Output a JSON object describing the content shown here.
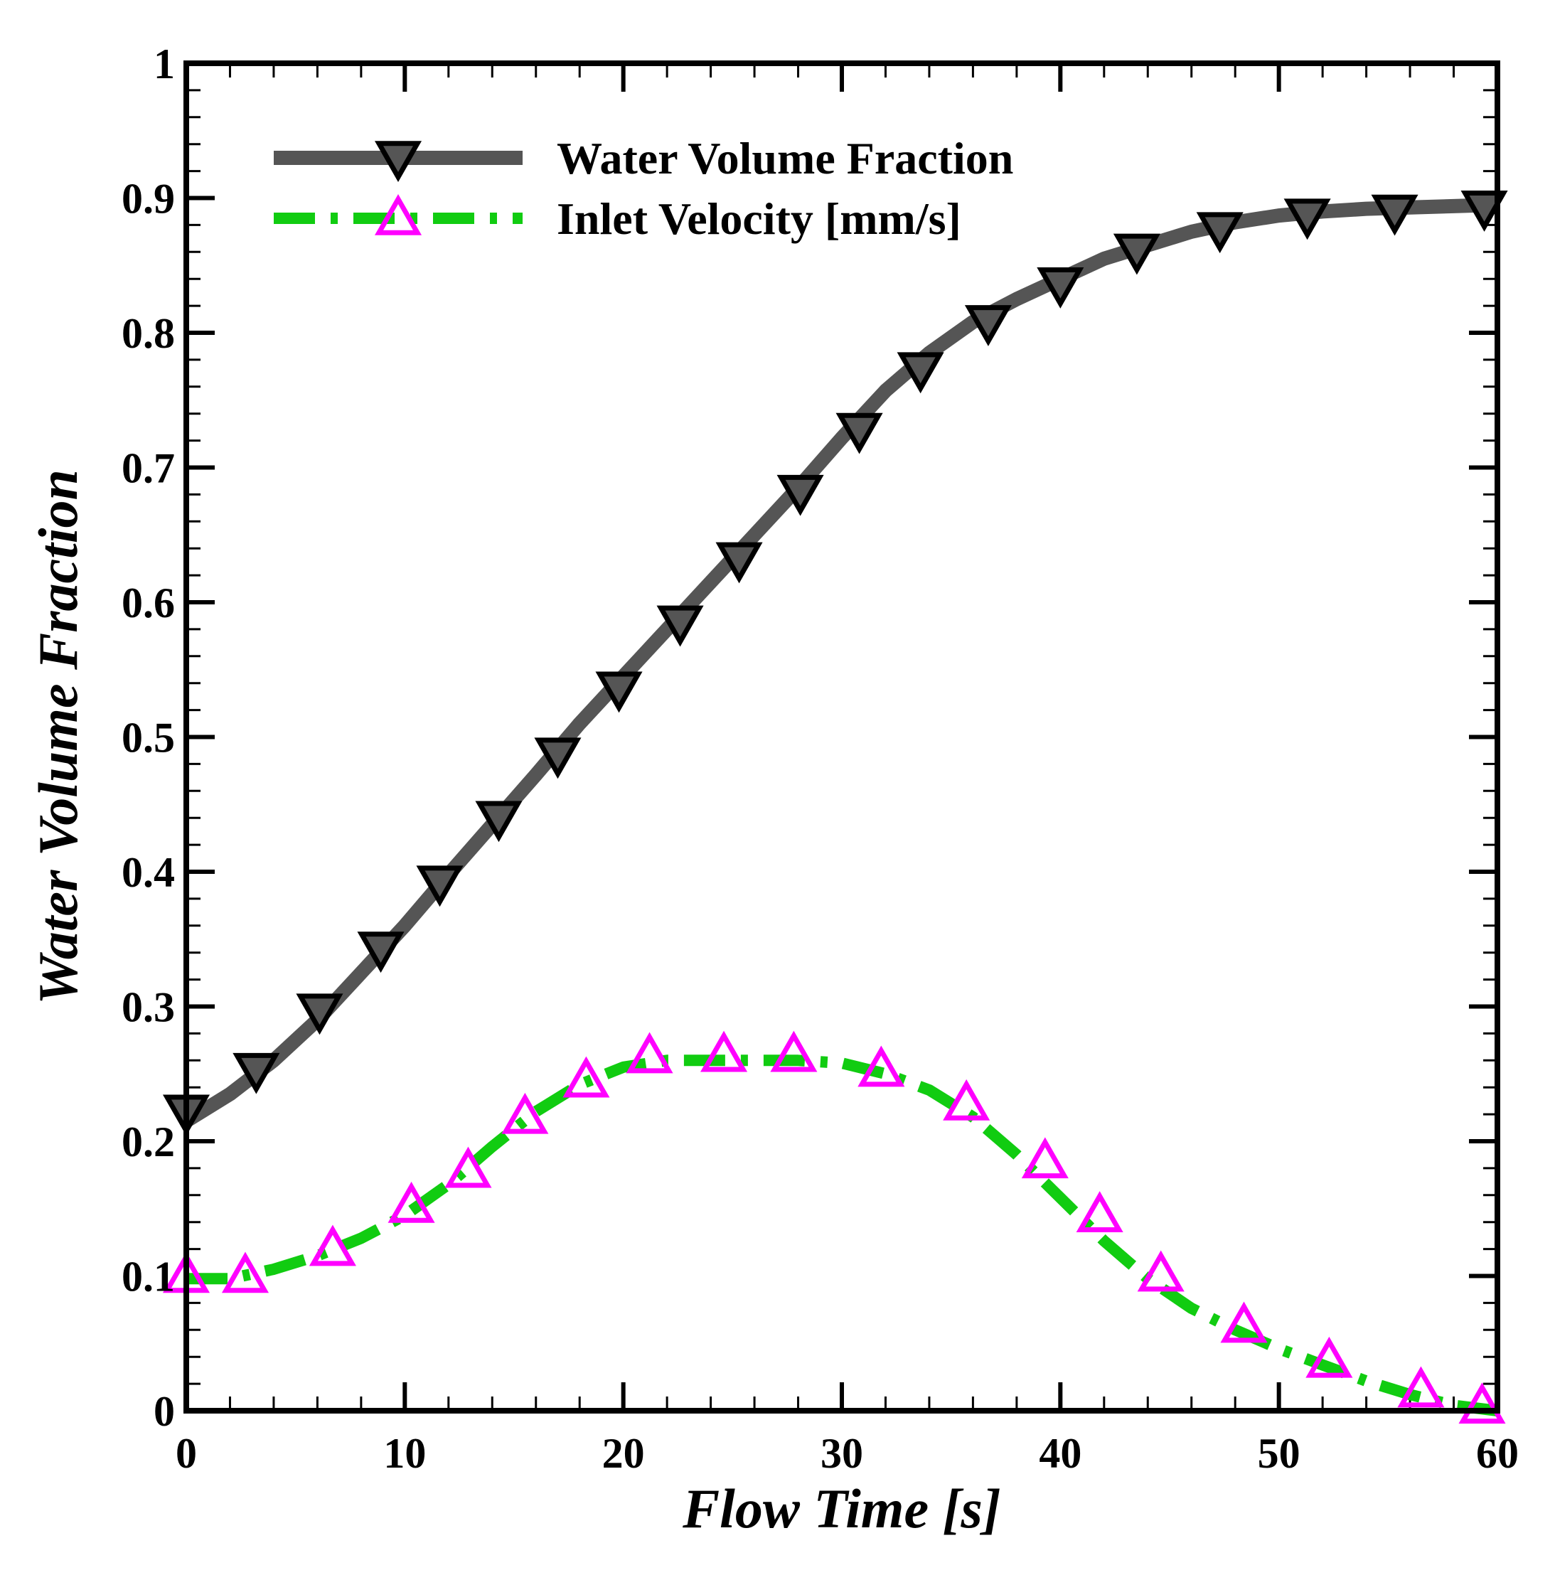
{
  "chart_data": {
    "type": "line",
    "title": "",
    "xlabel": "Flow Time [s]",
    "ylabel": "Water Volume Fraction",
    "xlim": [
      0,
      60
    ],
    "ylim": [
      0,
      1
    ],
    "xticks": [
      0,
      10,
      20,
      30,
      40,
      50,
      60
    ],
    "xtick_labels": [
      "0",
      "10",
      "20",
      "30",
      "40",
      "50",
      "60"
    ],
    "yticks": [
      0,
      0.1,
      0.2,
      0.3,
      0.4,
      0.5,
      0.6,
      0.7,
      0.8,
      0.9,
      1
    ],
    "ytick_labels": [
      "0",
      "0.1",
      "0.2",
      "0.3",
      "0.4",
      "0.5",
      "0.6",
      "0.7",
      "0.8",
      "0.9",
      "1"
    ],
    "grid": false,
    "legend_position": "top-left",
    "series": [
      {
        "name": "Water Volume Fraction",
        "line_color": "#555555",
        "line_style": "solid",
        "marker": "triangle-down",
        "marker_fill": "#555555",
        "marker_edge": "#000000",
        "line_x": [
          0,
          2,
          4,
          6,
          8,
          10,
          12,
          14,
          16,
          18,
          20,
          22,
          24,
          26,
          28,
          30,
          32,
          34,
          36,
          38,
          40,
          42,
          44,
          46,
          48,
          50,
          52,
          54,
          56,
          58,
          60
        ],
        "line_y": [
          0.215,
          0.235,
          0.26,
          0.29,
          0.325,
          0.36,
          0.398,
          0.435,
          0.472,
          0.51,
          0.545,
          0.58,
          0.615,
          0.65,
          0.685,
          0.722,
          0.757,
          0.785,
          0.808,
          0.825,
          0.84,
          0.855,
          0.865,
          0.875,
          0.882,
          0.887,
          0.89,
          0.892,
          0.893,
          0.894,
          0.895
        ],
        "marker_x": [
          0,
          3.2,
          6.1,
          8.9,
          11.6,
          14.3,
          17.0,
          19.8,
          22.6,
          25.3,
          28.1,
          30.8,
          33.6,
          36.7,
          40.0,
          43.5,
          47.3,
          51.3,
          55.3,
          59.4
        ],
        "marker_y": [
          0.222,
          0.253,
          0.297,
          0.343,
          0.392,
          0.44,
          0.487,
          0.536,
          0.585,
          0.632,
          0.682,
          0.728,
          0.773,
          0.808,
          0.836,
          0.861,
          0.877,
          0.887,
          0.89,
          0.893
        ]
      },
      {
        "name": "Inlet Velocity [mm/s]",
        "line_color": "#11cc11",
        "line_style": "dash-dot",
        "marker": "triangle-up",
        "marker_fill": "none",
        "marker_edge": "#ff00ff",
        "line_x": [
          0,
          2,
          4,
          6,
          8,
          10,
          12,
          14,
          16,
          18,
          20,
          22,
          24,
          26,
          28,
          30,
          32,
          34,
          36,
          38,
          40,
          42,
          44,
          46,
          48,
          50,
          52,
          54,
          56,
          58,
          60
        ],
        "line_y": [
          0.098,
          0.098,
          0.105,
          0.115,
          0.128,
          0.145,
          0.168,
          0.196,
          0.222,
          0.242,
          0.255,
          0.26,
          0.26,
          0.26,
          0.26,
          0.258,
          0.25,
          0.238,
          0.218,
          0.19,
          0.158,
          0.126,
          0.098,
          0.076,
          0.06,
          0.046,
          0.034,
          0.022,
          0.012,
          0.004,
          0.0
        ],
        "marker_x": [
          0,
          2.7,
          6.7,
          10.3,
          12.9,
          15.5,
          18.3,
          21.2,
          24.6,
          27.8,
          31.8,
          35.7,
          39.3,
          41.8,
          44.6,
          48.4,
          52.3,
          56.5,
          59.3
        ],
        "marker_y": [
          0.1,
          0.1,
          0.12,
          0.152,
          0.178,
          0.218,
          0.245,
          0.263,
          0.264,
          0.264,
          0.253,
          0.228,
          0.185,
          0.145,
          0.101,
          0.063,
          0.037,
          0.015,
          0.003
        ]
      }
    ]
  }
}
